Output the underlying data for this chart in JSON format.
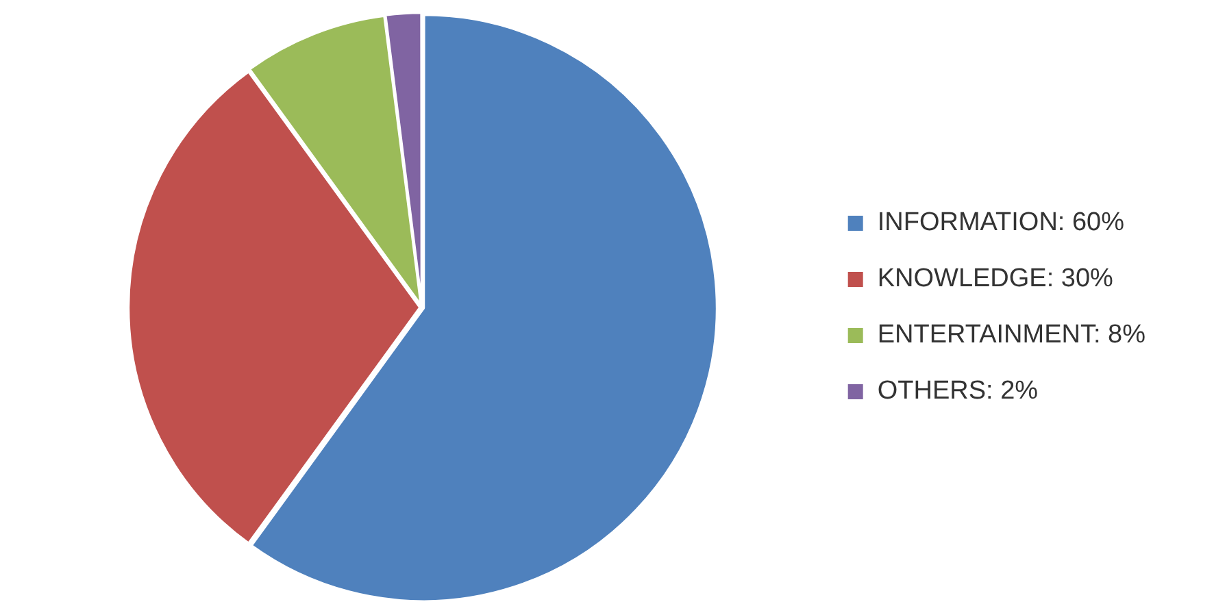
{
  "chart_data": {
    "type": "pie",
    "categories": [
      "INFORMATION",
      "KNOWLEDGE",
      "ENTERTAINMENT",
      "OTHERS"
    ],
    "values": [
      60,
      30,
      8,
      2
    ],
    "value_labels": [
      "60%",
      "30%",
      "8%",
      "2%"
    ],
    "colors": [
      "#4f81bd",
      "#c0504d",
      "#9bbb59",
      "#8064a2"
    ],
    "legend": "right"
  }
}
